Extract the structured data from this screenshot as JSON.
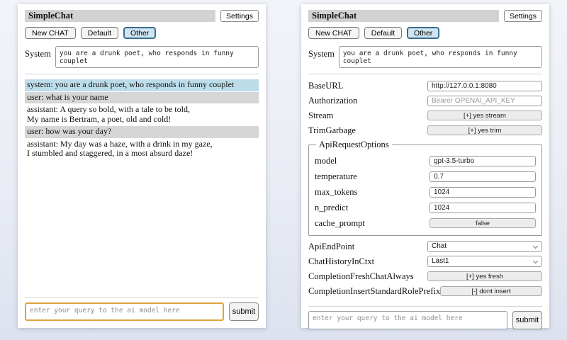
{
  "header": {
    "title": "SimpleChat",
    "settings_button": "Settings",
    "sessions": [
      {
        "label": "New CHAT",
        "selected": false
      },
      {
        "label": "Default",
        "selected": false
      },
      {
        "label": "Other",
        "selected": true
      }
    ]
  },
  "system": {
    "label": "System",
    "value": "you are a drunk poet, who responds in funny couplet"
  },
  "chat": {
    "messages": [
      {
        "role": "system",
        "text": "system: you are a drunk poet, who responds in funny couplet"
      },
      {
        "role": "user",
        "text": "user: what is your name"
      },
      {
        "role": "assistant",
        "text": "assistant: A query so bold, with a tale to be told,\nMy name is Bertram, a poet, old and cold!"
      },
      {
        "role": "user",
        "text": "user: how was your day?"
      },
      {
        "role": "assistant",
        "text": "assistant: My day was a haze, with a drink in my gaze,\nI stumbled and staggered, in a most absurd daze!"
      }
    ]
  },
  "settings": {
    "baseurl": {
      "label": "BaseURL",
      "value": "http://127.0.0.1:8080"
    },
    "authorization": {
      "label": "Authorization",
      "placeholder": "Bearer OPENAI_API_KEY"
    },
    "stream": {
      "label": "Stream",
      "value": "[+] yes stream"
    },
    "trimgarbage": {
      "label": "TrimGarbage",
      "value": "[+] yes trim"
    },
    "api_request_options": {
      "legend": "ApiRequestOptions",
      "model": {
        "label": "model",
        "value": "gpt-3.5-turbo"
      },
      "temperature": {
        "label": "temperature",
        "value": "0.7"
      },
      "max_tokens": {
        "label": "max_tokens",
        "value": "1024"
      },
      "n_predict": {
        "label": "n_predict",
        "value": "1024"
      },
      "cache_prompt": {
        "label": "cache_prompt",
        "value": "false"
      }
    },
    "apiendpoint": {
      "label": "ApiEndPoint",
      "value": "Chat"
    },
    "chathistoryinctxt": {
      "label": "ChatHistoryInCtxt",
      "value": "Last1"
    },
    "completionfreshchatalways": {
      "label": "CompletionFreshChatAlways",
      "value": "[+] yes fresh"
    },
    "completioninsertstandardroleprefix": {
      "label": "CompletionInsertStandardRolePrefix",
      "value": "[-] dont insert"
    }
  },
  "query": {
    "placeholder": "enter your query to the ai model here",
    "submit_label": "submit"
  },
  "colors": {
    "selected_session_border": "#3b6e8f",
    "selected_session_bg": "#cfe5f2",
    "system_msg_bg": "#bcdcea",
    "user_msg_bg": "#d6d6d6",
    "query_focus_border": "#dfa33d",
    "titlebar_bg": "#d2d2d2"
  }
}
